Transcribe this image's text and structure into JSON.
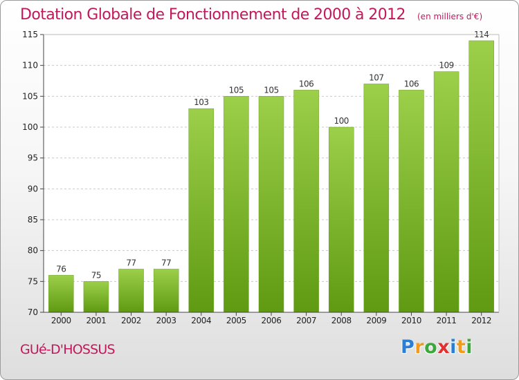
{
  "chart_data": {
    "type": "bar",
    "title": "Dotation Globale de Fonctionnement de 2000 à 2012",
    "unit_note": "(en milliers d'€)",
    "categories": [
      "2000",
      "2001",
      "2002",
      "2003",
      "2004",
      "2005",
      "2006",
      "2007",
      "2008",
      "2009",
      "2010",
      "2011",
      "2012"
    ],
    "values": [
      76,
      75,
      77,
      77,
      103,
      105,
      105,
      106,
      100,
      107,
      106,
      109,
      114
    ],
    "ylim": [
      70,
      115
    ],
    "yticks": [
      70,
      75,
      80,
      85,
      90,
      95,
      100,
      105,
      110,
      115
    ],
    "grid": "horizontal-dashed",
    "bar_color_top": "#9ccf4a",
    "bar_color_bottom": "#5f9a12",
    "xlabel": "",
    "ylabel": ""
  },
  "commune": "GUé-D'HOSSUS",
  "brand": {
    "letters": [
      "P",
      "r",
      "o",
      "x",
      "i",
      "t",
      "i"
    ],
    "colors": [
      "#2a7fd4",
      "#f29a1b",
      "#3aa83a",
      "#e0302f",
      "#2a7fd4",
      "#f29a1b",
      "#3aa83a"
    ]
  },
  "colors": {
    "title": "#c2185b",
    "axis": "#444444",
    "grid": "#c8c8c8"
  }
}
